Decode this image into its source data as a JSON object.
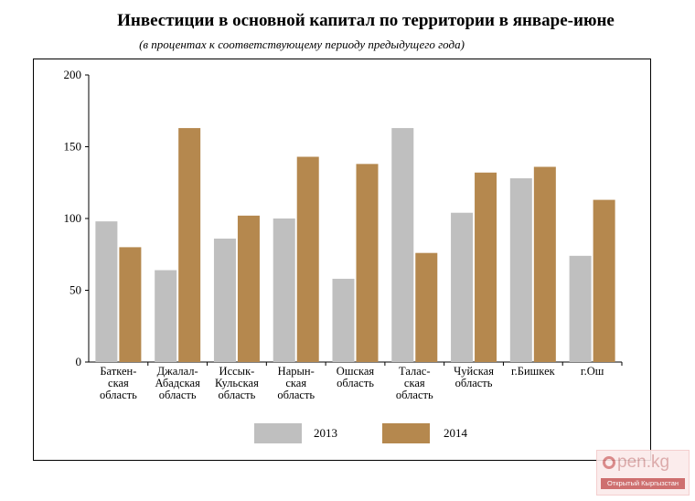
{
  "chart_data": {
    "type": "bar",
    "title": "Инвестиции в основной капитал по территории в январе-июне",
    "subtitle": "(в процентах к соответствующему периоду предыдущего года)",
    "categories": [
      [
        "Баткен-",
        "ская",
        "область"
      ],
      [
        "Джалал-",
        "Абадская",
        "область"
      ],
      [
        "Иссык-",
        "Кульская",
        "область"
      ],
      [
        "Нарын-",
        "ская",
        "область"
      ],
      [
        "Ошская",
        "область"
      ],
      [
        "Талас-",
        "ская",
        "область"
      ],
      [
        "Чуйская",
        "область"
      ],
      [
        "г.Бишкек"
      ],
      [
        "г.Ош"
      ]
    ],
    "series": [
      {
        "name": "2013",
        "color": "#bfbfbf",
        "values": [
          98,
          64,
          86,
          100,
          58,
          163,
          104,
          128,
          74
        ]
      },
      {
        "name": "2014",
        "color": "#b5884e",
        "values": [
          80,
          163,
          102,
          143,
          138,
          76,
          132,
          136,
          113
        ]
      }
    ],
    "ylim": [
      0,
      200
    ],
    "yticks": [
      "0",
      "50",
      "100",
      "150",
      "200"
    ],
    "legend_position": "bottom",
    "grid": false
  },
  "watermark": {
    "brand": "pen.kg",
    "tagline": "Открытый Кыргызстан"
  }
}
